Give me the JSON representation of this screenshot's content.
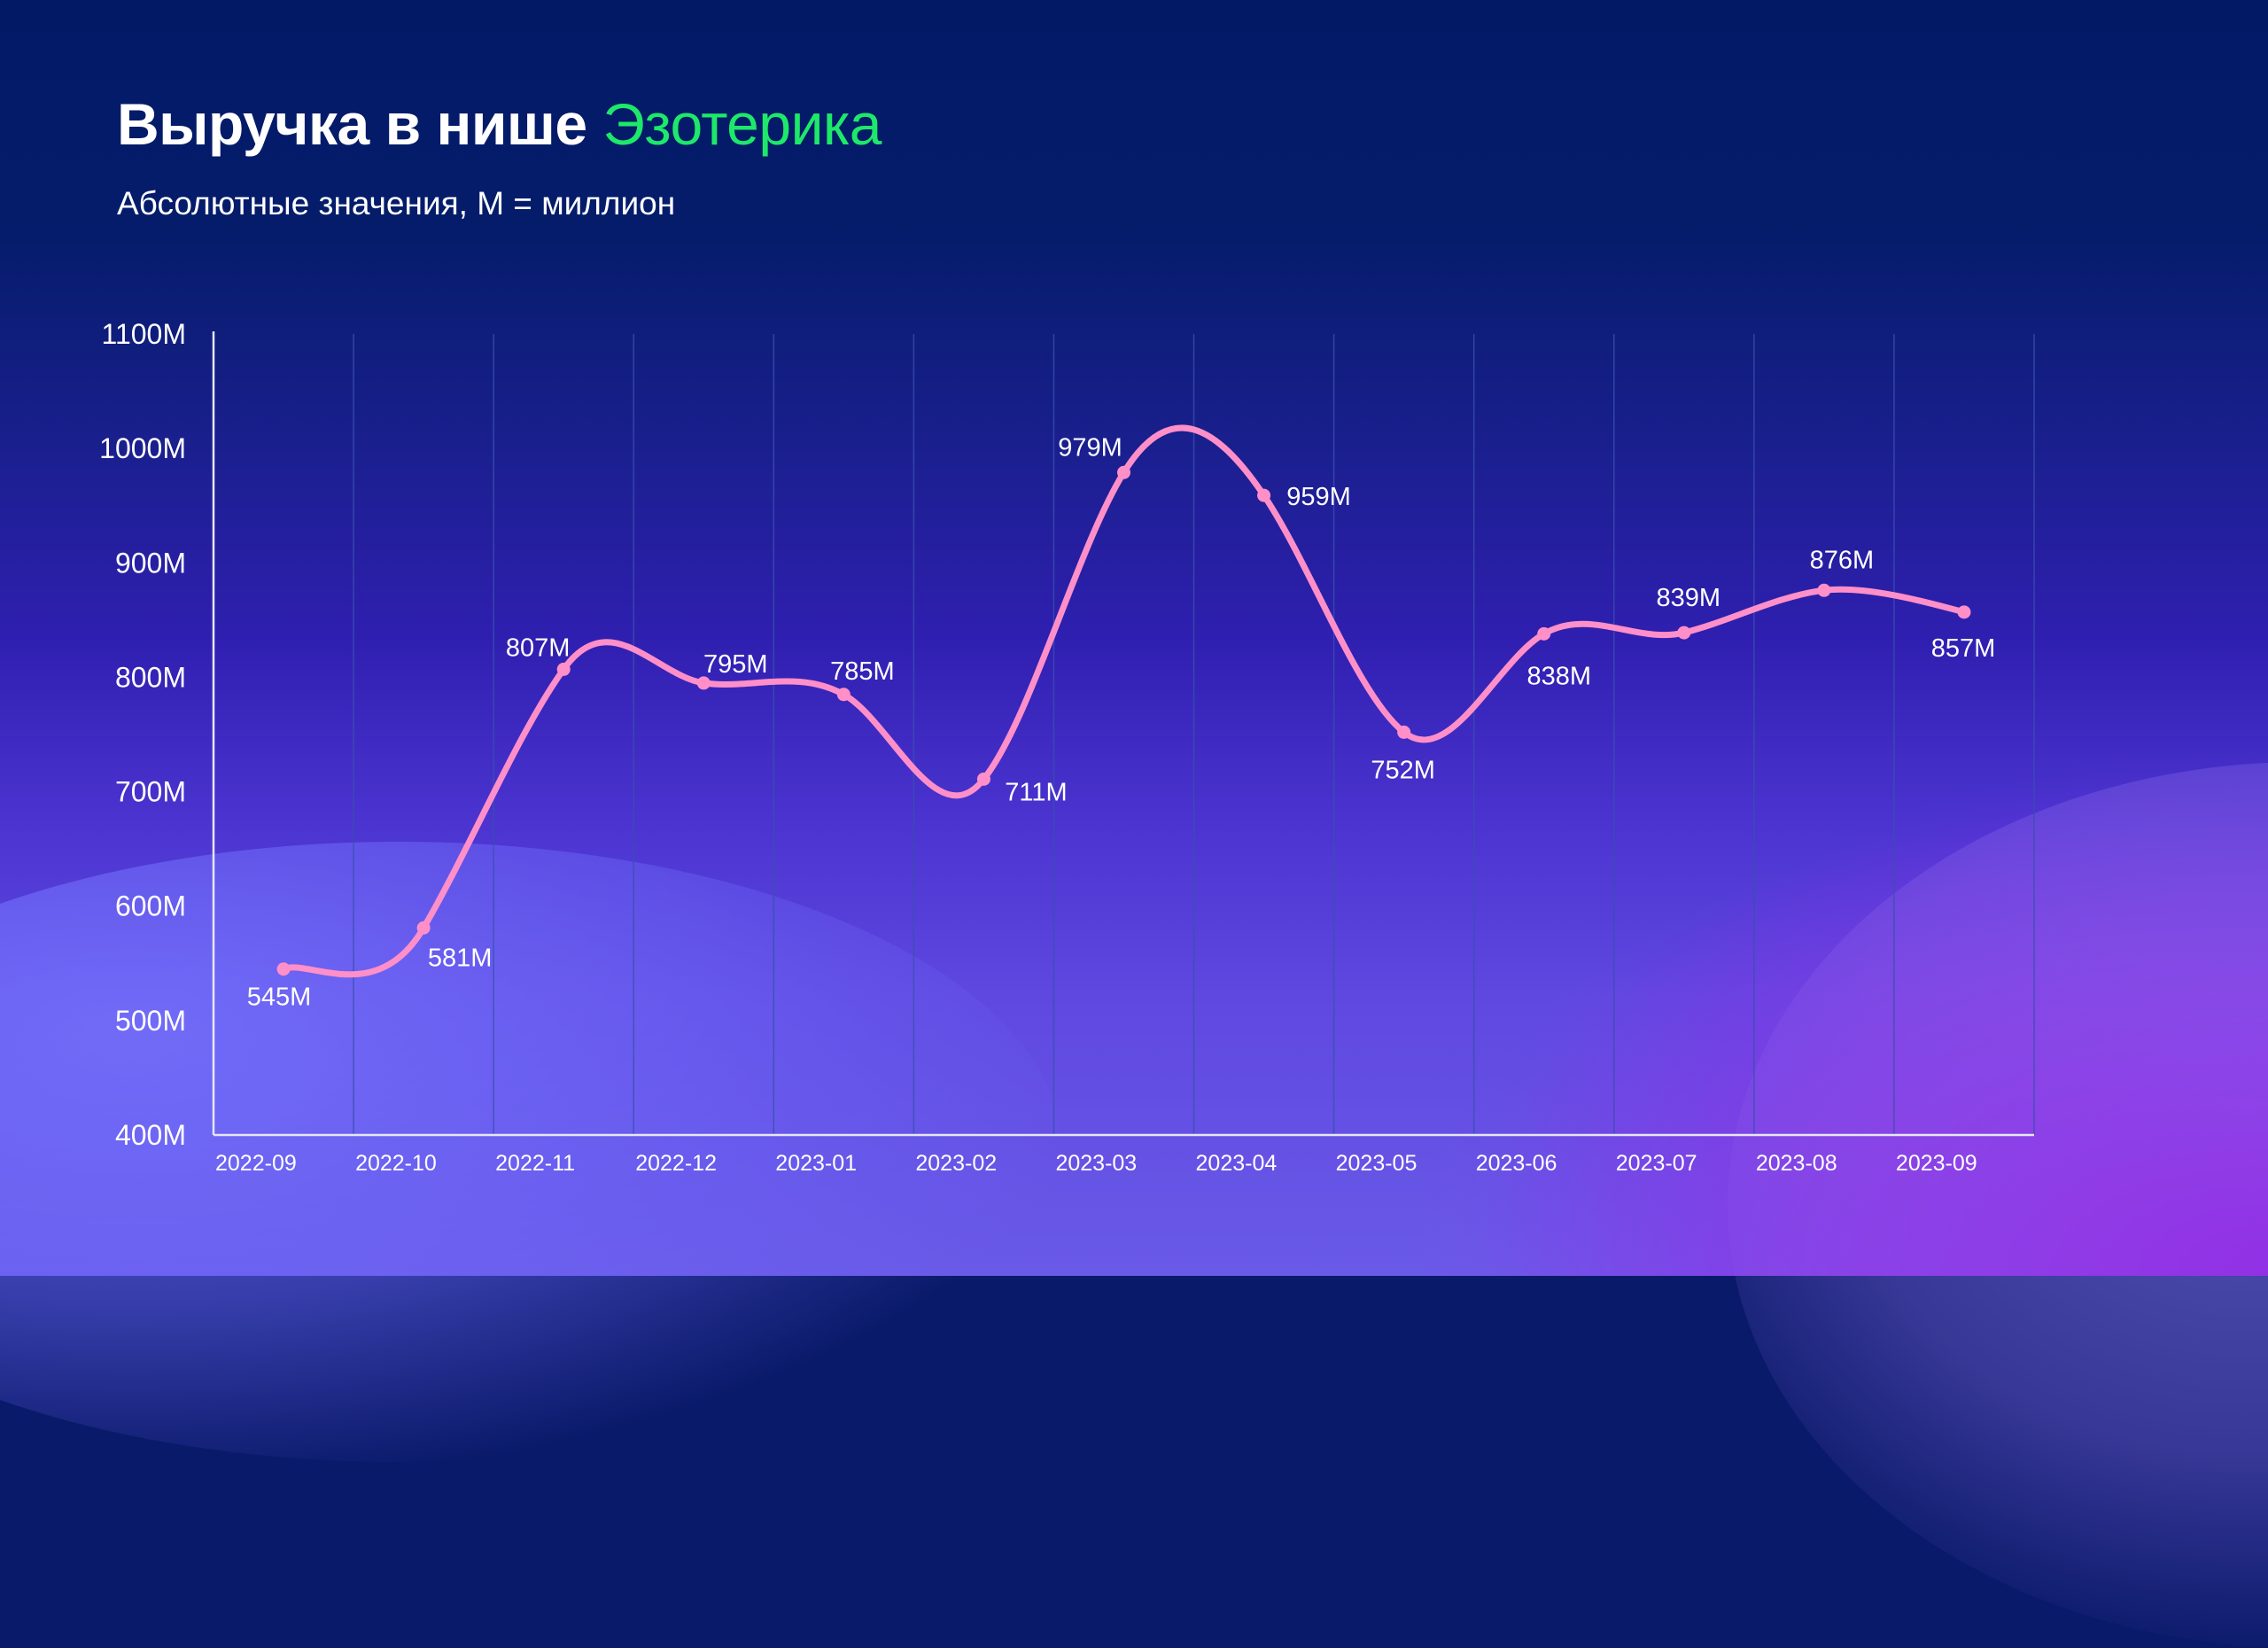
{
  "header": {
    "title_main": "Выручка в нише",
    "title_accent": "Эзотерика",
    "subtitle": "Абсолютные значения, M = миллион"
  },
  "colors": {
    "accent_green": "#1ee86a",
    "line": "#ff8fc8",
    "axis": "#e6e6f5",
    "grid": "#3a4fb0",
    "text": "#ffffff"
  },
  "chart_data": {
    "type": "line",
    "title": "Выручка в нише Эзотерика",
    "subtitle": "Абсолютные значения, M = миллион",
    "xlabel": "",
    "ylabel": "",
    "categories": [
      "2022-09",
      "2022-10",
      "2022-11",
      "2022-12",
      "2023-01",
      "2023-02",
      "2023-03",
      "2023-04",
      "2023-05",
      "2023-06",
      "2023-07",
      "2023-08",
      "2023-09"
    ],
    "series": [
      {
        "name": "Выручка",
        "values": [
          545,
          581,
          807,
          795,
          785,
          711,
          979,
          959,
          752,
          838,
          839,
          876,
          857
        ],
        "labels": [
          "545M",
          "581M",
          "807M",
          "795M",
          "785M",
          "711M",
          "979M",
          "959M",
          "752M",
          "838M",
          "839M",
          "876M",
          "857M"
        ],
        "label_offsets": [
          [
            -5,
            31
          ],
          [
            41,
            33
          ],
          [
            -29,
            -25
          ],
          [
            36,
            -22
          ],
          [
            21,
            -27
          ],
          [
            59,
            14
          ],
          [
            -38,
            -29
          ],
          [
            62,
            1
          ],
          [
            -1,
            42
          ],
          [
            17,
            47
          ],
          [
            5,
            -40
          ],
          [
            20,
            -35
          ],
          [
            -1,
            40
          ]
        ]
      }
    ],
    "ylim": [
      400,
      1100
    ],
    "yticks": [
      400,
      500,
      600,
      700,
      800,
      900,
      1000,
      1100
    ],
    "ytick_labels": [
      "400M",
      "500M",
      "600M",
      "700M",
      "800M",
      "900M",
      "1000M",
      "1100M"
    ],
    "grid": "vertical",
    "smooth": true,
    "legend": "none"
  }
}
